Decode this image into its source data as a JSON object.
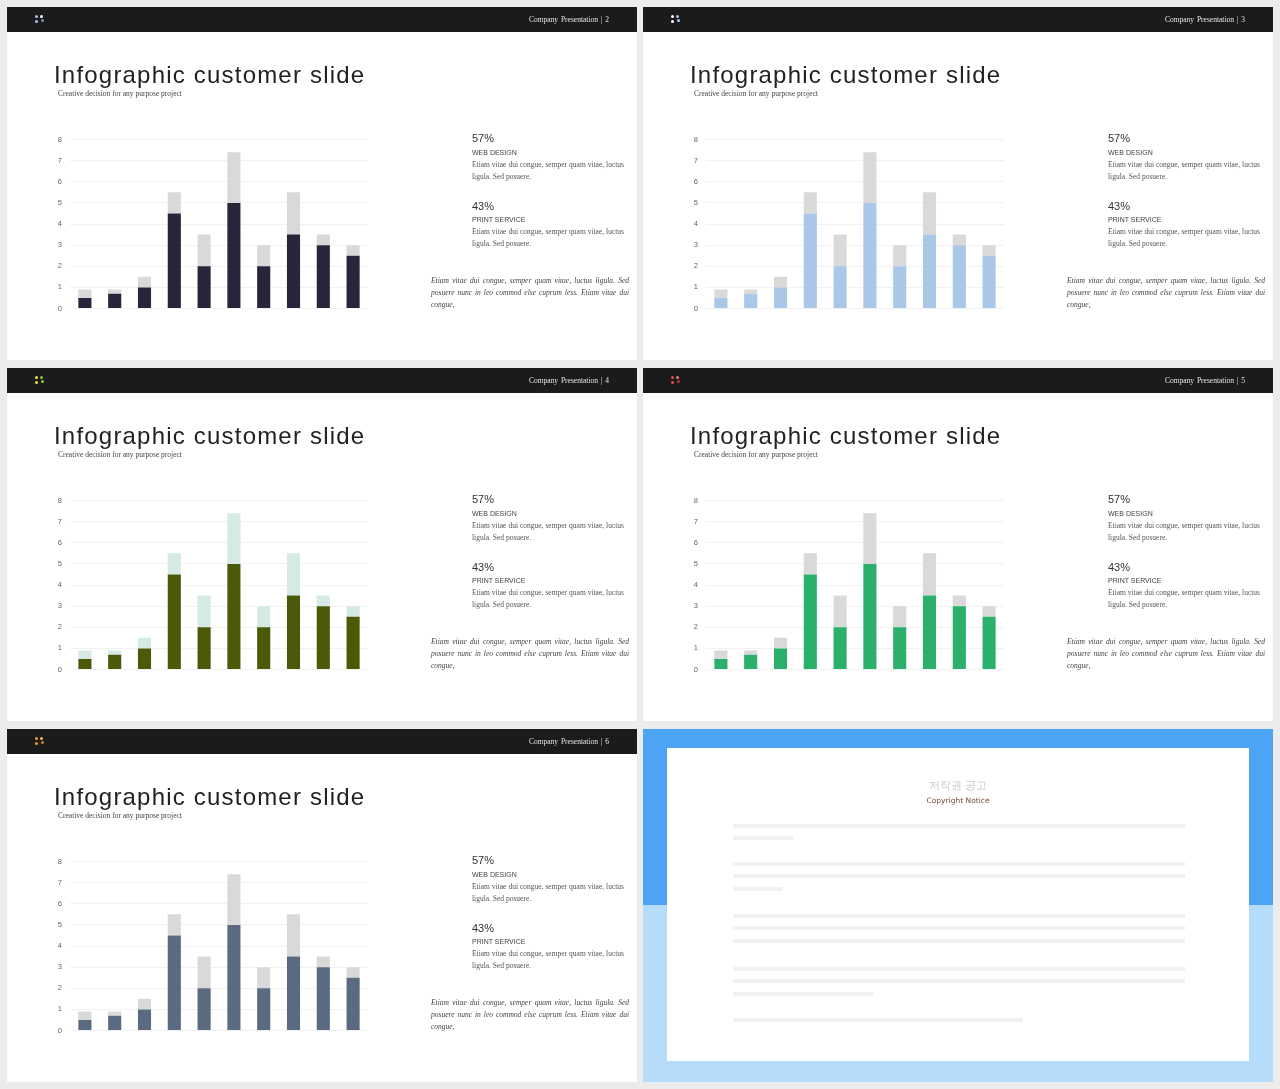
{
  "chart_data": [
    {
      "type": "bar",
      "title": "Infographic customer slide",
      "subtitle": "Creative decision for any purpose project",
      "categories": [
        null,
        null,
        null,
        null,
        null,
        null,
        null,
        null,
        null,
        null
      ],
      "series": [
        {
          "color": "#28253a",
          "values": [
            0.5,
            0.7,
            1,
            4.5,
            2,
            5,
            2,
            3.5,
            3,
            2.5
          ]
        },
        {
          "color": "#d9d9d9",
          "values": [
            0.4,
            0.2,
            0.5,
            1,
            1.5,
            2.4,
            1,
            2,
            0.5,
            0.5
          ]
        }
      ],
      "stacked": true,
      "ylim": [
        0,
        8
      ],
      "yticks": [
        0,
        1,
        2,
        3,
        4,
        5,
        6,
        7,
        8
      ],
      "grid": "y",
      "annotations": [
        "Company Presentation | 2",
        "57%",
        "WEB DESIGN",
        "Etiam vitae dui congue, semper quam vitae, luctus ligula. Sed posuere.",
        "43%",
        "PRINT SERVICE",
        "Etiam vitae dui congue, semper quam vitae, luctus ligula. Sed posuere.",
        "Etiam vitae dui congue, semper quam vitae, luctus ligula. Sed posuere nunc in leo commod else cuprum less. Etiam vitae dui congue,"
      ]
    },
    {
      "type": "bar",
      "title": "Infographic customer slide",
      "subtitle": "Creative decision for any purpose project",
      "categories": [
        null,
        null,
        null,
        null,
        null,
        null,
        null,
        null,
        null,
        null
      ],
      "series": [
        {
          "color": "#a9c7e7",
          "values": [
            0.5,
            0.7,
            1,
            4.5,
            2,
            5,
            2,
            3.5,
            3,
            2.5
          ]
        },
        {
          "color": "#d9d9d9",
          "values": [
            0.4,
            0.2,
            0.5,
            1,
            1.5,
            2.4,
            1,
            2,
            0.5,
            0.5
          ]
        }
      ],
      "stacked": true,
      "ylim": [
        0,
        8
      ],
      "yticks": [
        0,
        1,
        2,
        3,
        4,
        5,
        6,
        7,
        8
      ],
      "grid": "y",
      "annotations": [
        "Company Presentation | 3",
        "57%",
        "WEB DESIGN",
        "Etiam vitae dui congue, semper quam vitae, luctus ligula. Sed posuere.",
        "43%",
        "PRINT SERVICE",
        "Etiam vitae dui congue, semper quam vitae, luctus ligula. Sed posuere.",
        "Etiam vitae dui congue, semper quam vitae, luctus ligula. Sed posuere nunc in leo commod else cuprum less. Etiam vitae dui congue,"
      ]
    },
    {
      "type": "bar",
      "title": "Infographic customer slide",
      "subtitle": "Creative decision for any purpose project",
      "categories": [
        null,
        null,
        null,
        null,
        null,
        null,
        null,
        null,
        null,
        null
      ],
      "series": [
        {
          "color": "#4a5a08",
          "values": [
            0.5,
            0.7,
            1,
            4.5,
            2,
            5,
            2,
            3.5,
            3,
            2.5
          ]
        },
        {
          "color": "#d5e9e5",
          "values": [
            0.4,
            0.2,
            0.5,
            1,
            1.5,
            2.4,
            1,
            2,
            0.5,
            0.5
          ]
        }
      ],
      "stacked": true,
      "ylim": [
        0,
        8
      ],
      "yticks": [
        0,
        1,
        2,
        3,
        4,
        5,
        6,
        7,
        8
      ],
      "grid": "y",
      "annotations": [
        "Company Presentation | 4",
        "57%",
        "WEB DESIGN",
        "Etiam vitae dui congue, semper quam vitae, luctus ligula. Sed posuere.",
        "43%",
        "PRINT SERVICE",
        "Etiam vitae dui congue, semper quam vitae, luctus ligula. Sed posuere.",
        "Etiam vitae dui congue, semper quam vitae, luctus ligula. Sed posuere nunc in leo commod else cuprum less. Etiam vitae dui congue,"
      ]
    },
    {
      "type": "bar",
      "title": "Infographic customer slide",
      "subtitle": "Creative decision for any purpose project",
      "categories": [
        null,
        null,
        null,
        null,
        null,
        null,
        null,
        null,
        null,
        null
      ],
      "series": [
        {
          "color": "#2bb06b",
          "values": [
            0.5,
            0.7,
            1,
            4.5,
            2,
            5,
            2,
            3.5,
            3,
            2.5
          ]
        },
        {
          "color": "#d9d9d9",
          "values": [
            0.4,
            0.2,
            0.5,
            1,
            1.5,
            2.4,
            1,
            2,
            0.5,
            0.5
          ]
        }
      ],
      "stacked": true,
      "ylim": [
        0,
        8
      ],
      "yticks": [
        0,
        1,
        2,
        3,
        4,
        5,
        6,
        7,
        8
      ],
      "grid": "y",
      "annotations": [
        "Company Presentation | 5",
        "57%",
        "WEB DESIGN",
        "Etiam vitae dui congue, semper quam vitae, luctus ligula. Sed posuere.",
        "43%",
        "PRINT SERVICE",
        "Etiam vitae dui congue, semper quam vitae, luctus ligula. Sed posuere.",
        "Etiam vitae dui congue, semper quam vitae, luctus ligula. Sed posuere nunc in leo commod else cuprum less. Etiam vitae dui congue,"
      ]
    },
    {
      "type": "bar",
      "title": "Infographic customer slide",
      "subtitle": "Creative decision for any purpose project",
      "categories": [
        null,
        null,
        null,
        null,
        null,
        null,
        null,
        null,
        null,
        null
      ],
      "series": [
        {
          "color": "#5a6a80",
          "values": [
            0.5,
            0.7,
            1,
            4.5,
            2,
            5,
            2,
            3.5,
            3,
            2.5
          ]
        },
        {
          "color": "#d9d9d9",
          "values": [
            0.4,
            0.2,
            0.5,
            1,
            1.5,
            2.4,
            1,
            2,
            0.5,
            0.5
          ]
        }
      ],
      "stacked": true,
      "ylim": [
        0,
        8
      ],
      "yticks": [
        0,
        1,
        2,
        3,
        4,
        5,
        6,
        7,
        8
      ],
      "grid": "y",
      "annotations": [
        "Company Presentation | 6",
        "57%",
        "WEB DESIGN",
        "Etiam vitae dui congue, semper quam vitae, luctus ligula. Sed posuere.",
        "43%",
        "PRINT SERVICE",
        "Etiam vitae dui congue, semper quam vitae, luctus ligula. Sed posuere.",
        "Etiam vitae dui congue, semper quam vitae, luctus ligula. Sed posuere nunc in leo commod else cuprum less. Etiam vitae dui congue,"
      ]
    },
    {
      "type": "other",
      "title": "저작권 공고",
      "subtitle": "Copyright Notice"
    }
  ]
}
